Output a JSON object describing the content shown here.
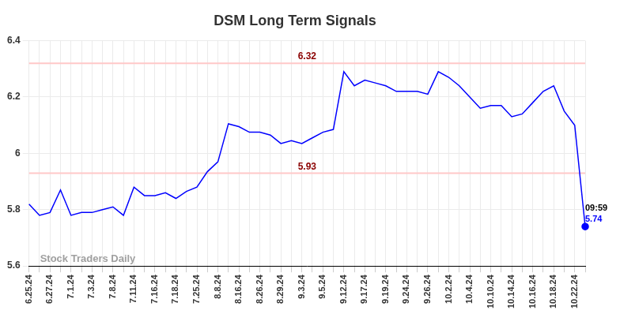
{
  "chart_data": {
    "type": "line",
    "title": "DSM Long Term Signals",
    "categories": [
      "6.25.24",
      null,
      "6.27.24",
      null,
      "7.1.24",
      null,
      "7.3.24",
      null,
      "7.8.24",
      null,
      "7.11.24",
      null,
      "7.16.24",
      null,
      "7.18.24",
      null,
      "7.25.24",
      null,
      "8.8.24",
      null,
      "8.16.24",
      null,
      "8.26.24",
      null,
      "8.29.24",
      null,
      "9.3.24",
      null,
      "9.5.24",
      null,
      "9.12.24",
      null,
      "9.17.24",
      null,
      "9.19.24",
      null,
      "9.24.24",
      null,
      "9.26.24",
      null,
      "10.2.24",
      null,
      "10.4.24",
      null,
      "10.10.24",
      null,
      "10.14.24",
      null,
      "10.16.24",
      null,
      "10.18.24",
      null,
      "10.22.24",
      null
    ],
    "values": [
      5.82,
      5.78,
      5.79,
      5.87,
      5.78,
      5.79,
      5.79,
      5.8,
      5.81,
      5.78,
      5.88,
      5.85,
      5.85,
      5.86,
      5.84,
      5.865,
      5.88,
      5.935,
      5.97,
      6.105,
      6.095,
      6.075,
      6.075,
      6.065,
      6.035,
      6.045,
      6.035,
      6.055,
      6.075,
      6.085,
      6.29,
      6.24,
      6.26,
      6.25,
      6.24,
      6.22,
      6.22,
      6.22,
      6.21,
      6.29,
      6.27,
      6.24,
      6.2,
      6.16,
      6.17,
      6.17,
      6.13,
      6.14,
      6.18,
      6.22,
      6.24,
      6.15,
      6.1,
      5.74
    ],
    "color": "#0000ff",
    "ylim": [
      5.6,
      6.4
    ],
    "yticks": [
      5.6,
      5.8,
      6,
      6.2,
      6.4
    ],
    "grid": true,
    "reference_lines": [
      {
        "value": 6.32,
        "label": "6.32"
      },
      {
        "value": 5.93,
        "label": "5.93"
      }
    ],
    "end_label": {
      "time": "09:59",
      "value": 5.74
    },
    "watermark": "Stock Traders Daily"
  }
}
